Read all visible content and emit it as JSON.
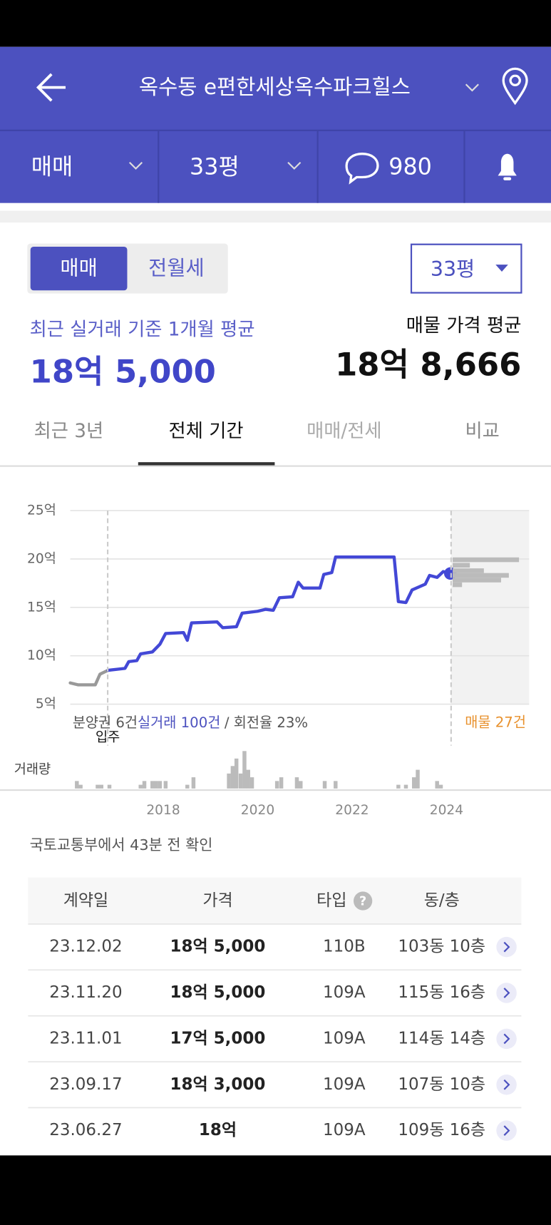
{
  "header": {
    "title": "옥수동 e편한세상옥수파크힐스"
  },
  "filters": {
    "trade": "매매",
    "size": "33평",
    "comments": "980"
  },
  "toggle": [
    "매매",
    "전월세"
  ],
  "size_select": "33평",
  "summary": {
    "recent_label": "최근 실거래 기준 1개월 평균",
    "recent_price": "18억 5,000",
    "listing_label": "매물 가격 평균",
    "listing_price": "18억 8,666"
  },
  "tabs": [
    "최근 3년",
    "전체 기간",
    "매매/전세",
    "비교"
  ],
  "chart_data": {
    "type": "line",
    "x": [
      2016.03,
      2016.2,
      2016.56,
      2016.66,
      2016.83,
      2017.19,
      2017.27,
      2017.44,
      2017.52,
      2017.77,
      2017.93,
      2018.05,
      2018.43,
      2018.51,
      2018.6,
      2019.14,
      2019.26,
      2019.55,
      2019.67,
      2020.0,
      2020.17,
      2020.33,
      2020.46,
      2020.74,
      2020.86,
      2020.96,
      2021.32,
      2021.4,
      2021.57,
      2021.65,
      2022.89,
      2022.98,
      2023.14,
      2023.27,
      2023.55,
      2023.64,
      2023.8,
      2023.93,
      2024.08
    ],
    "series": [
      {
        "color": "#999999",
        "values": [
          7.2,
          7.0,
          7.0,
          8.1,
          8.5,
          null,
          null,
          null,
          null,
          null,
          null,
          null,
          null,
          null,
          null,
          null,
          null,
          null,
          null,
          null,
          null,
          null,
          null,
          null,
          null,
          null,
          null,
          null,
          null,
          null,
          null,
          null,
          null,
          null,
          null,
          null,
          null,
          null,
          null
        ]
      },
      {
        "color": "#4348d6",
        "values": [
          null,
          null,
          null,
          null,
          8.5,
          8.7,
          9.4,
          9.5,
          10.2,
          10.4,
          11.2,
          12.3,
          12.4,
          11.6,
          13.4,
          13.5,
          12.9,
          13.0,
          14.4,
          14.6,
          14.8,
          14.7,
          16.0,
          16.1,
          17.6,
          17.0,
          17.0,
          18.4,
          18.6,
          20.2,
          20.2,
          15.6,
          15.5,
          16.8,
          17.4,
          18.3,
          18.1,
          18.7,
          18.5
        ]
      }
    ],
    "xlim": [
      2016.03,
      2025.75
    ],
    "xticks": [
      2018,
      2020,
      2022,
      2024
    ],
    "ylim": [
      5,
      25
    ],
    "yticks": [
      {
        "value": 5,
        "label": "5억"
      },
      {
        "value": 10,
        "label": "10억"
      },
      {
        "value": 15,
        "label": "15억"
      },
      {
        "value": 20,
        "label": "20억"
      },
      {
        "value": 25,
        "label": "25억"
      }
    ],
    "grid": true,
    "annotations": {
      "presale": "분양권 6건",
      "deals": "실거래 100건",
      "turnover": "/ 회전율 23%",
      "move_in": "입주",
      "listings": "매물 27건"
    },
    "volume": {
      "name": "거래량",
      "color": "#bbbbbb",
      "ylim": [
        0,
        10
      ],
      "x": [
        2016.17,
        2016.25,
        2016.61,
        2016.69,
        2016.86,
        2017.52,
        2017.6,
        2017.77,
        2017.85,
        2017.93,
        2018.05,
        2018.51,
        2018.64,
        2019.39,
        2019.47,
        2019.55,
        2019.64,
        2019.72,
        2019.8,
        2019.88,
        2020.41,
        2020.5,
        2020.83,
        2020.91,
        2021.42,
        2021.65,
        2022.98,
        2023.14,
        2023.31,
        2023.39,
        2023.8,
        2023.88
      ],
      "values": [
        2,
        1,
        1,
        1,
        1,
        1,
        2,
        2,
        2,
        2,
        2,
        1,
        3,
        4,
        6,
        8,
        4,
        10,
        5,
        3,
        2,
        3,
        3,
        2,
        2,
        2,
        1,
        1,
        3,
        5,
        2,
        1
      ]
    }
  },
  "source_note": "국토교통부에서 43분 전 확인",
  "table": {
    "headers": [
      "계약일",
      "가격",
      "타입",
      "동/층"
    ],
    "rows": [
      [
        "23.12.02",
        "18억 5,000",
        "110B",
        "103동 10층"
      ],
      [
        "23.11.20",
        "18억 5,000",
        "109A",
        "115동 16층"
      ],
      [
        "23.11.01",
        "17억 5,000",
        "109A",
        "114동 14층"
      ],
      [
        "23.09.17",
        "18억 3,000",
        "109A",
        "107동 10층"
      ],
      [
        "23.06.27",
        "18억",
        "109A",
        "109동 16층"
      ]
    ]
  }
}
